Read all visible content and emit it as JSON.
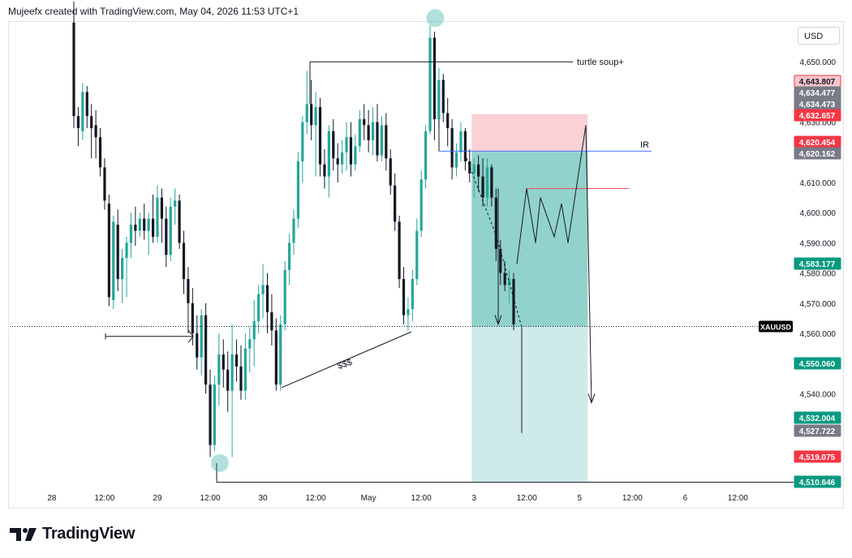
{
  "header": {
    "attribution": "Mujeefx created with TradingView.com, May 04, 2026 11:53 UTC+1"
  },
  "currency": "USD",
  "brand": {
    "name": "TradingView"
  },
  "colors": {
    "up": "#26a69a",
    "down": "#131722",
    "stop_zone": "#f7c6cc",
    "target_zone": "#26a69a",
    "label_green": "#089981",
    "label_red": "#f23645",
    "label_gray": "#787b86"
  },
  "chart_data": {
    "type": "candlestick",
    "symbol_label": "XAUUSD",
    "ylim": [
      4501,
      4667
    ],
    "y_ticks": [
      4540,
      4550,
      4560,
      4570,
      4580,
      4590,
      4600,
      4610,
      4620,
      4630,
      4640,
      4650
    ],
    "y_tick_labels": [
      "4,540.000",
      "4,550.000",
      "4,560.000",
      "4,570.000",
      "4,580.000",
      "4,590.000",
      "4,600.000",
      "4,610.000",
      "4,620.000",
      "4,630.000",
      "4,640.000",
      "4,650.000"
    ],
    "x_ticks": [
      {
        "label": "28",
        "i": -5
      },
      {
        "label": "12:00",
        "i": 7
      },
      {
        "label": "29",
        "i": 19
      },
      {
        "label": "12:00",
        "i": 31
      },
      {
        "label": "30",
        "i": 43
      },
      {
        "label": "12:00",
        "i": 55
      },
      {
        "label": "May",
        "i": 67
      },
      {
        "label": "12:00",
        "i": 79
      },
      {
        "label": "3",
        "i": 91
      },
      {
        "label": "12:00",
        "i": 103
      },
      {
        "label": "5",
        "i": 115
      },
      {
        "label": "12:00",
        "i": 127
      },
      {
        "label": "6",
        "i": 139
      },
      {
        "label": "12:00",
        "i": 151
      }
    ],
    "candles": [
      [
        4663,
        4670,
        4628,
        4632
      ],
      [
        4632,
        4635,
        4622,
        4628
      ],
      [
        4627,
        4643,
        4624,
        4640
      ],
      [
        4640,
        4642,
        4628,
        4632
      ],
      [
        4632,
        4636,
        4618,
        4628
      ],
      [
        4629,
        4634,
        4618,
        4625
      ],
      [
        4625,
        4628,
        4612,
        4615
      ],
      [
        4615,
        4618,
        4601,
        4604
      ],
      [
        4603,
        4606,
        4569,
        4572
      ],
      [
        4571,
        4599,
        4568,
        4597
      ],
      [
        4596,
        4601,
        4574,
        4578
      ],
      [
        4578,
        4588,
        4570,
        4585
      ],
      [
        4585,
        4592,
        4572,
        4590
      ],
      [
        4590,
        4600,
        4585,
        4596
      ],
      [
        4596,
        4602,
        4589,
        4594
      ],
      [
        4594,
        4600,
        4592,
        4598
      ],
      [
        4598,
        4603,
        4591,
        4594
      ],
      [
        4594,
        4600,
        4586,
        4598
      ],
      [
        4598,
        4606,
        4590,
        4592
      ],
      [
        4592,
        4609,
        4590,
        4605
      ],
      [
        4605,
        4608,
        4590,
        4598
      ],
      [
        4598,
        4602,
        4582,
        4586
      ],
      [
        4586,
        4605,
        4584,
        4602
      ],
      [
        4602,
        4608,
        4596,
        4604
      ],
      [
        4604,
        4606,
        4588,
        4590
      ],
      [
        4590,
        4594,
        4573,
        4578
      ],
      [
        4578,
        4582,
        4560,
        4570
      ],
      [
        4570,
        4575,
        4556,
        4560
      ],
      [
        4560,
        4566,
        4548,
        4552
      ],
      [
        4552,
        4568,
        4546,
        4566
      ],
      [
        4566,
        4570,
        4540,
        4543
      ],
      [
        4543,
        4548,
        4519,
        4523
      ],
      [
        4523,
        4546,
        4521,
        4543
      ],
      [
        4543,
        4560,
        4536,
        4553
      ],
      [
        4553,
        4558,
        4542,
        4548
      ],
      [
        4548,
        4554,
        4534,
        4541
      ],
      [
        4541,
        4563,
        4519,
        4553
      ],
      [
        4553,
        4558,
        4544,
        4549
      ],
      [
        4549,
        4556,
        4538,
        4541
      ],
      [
        4541,
        4560,
        4538,
        4555
      ],
      [
        4555,
        4562,
        4547,
        4558
      ],
      [
        4558,
        4571,
        4549,
        4564
      ],
      [
        4564,
        4576,
        4560,
        4573
      ],
      [
        4573,
        4583,
        4565,
        4576
      ],
      [
        4576,
        4580,
        4560,
        4567
      ],
      [
        4567,
        4573,
        4556,
        4561
      ],
      [
        4561,
        4565,
        4541,
        4543
      ],
      [
        4543,
        4566,
        4541,
        4563
      ],
      [
        4563,
        4584,
        4561,
        4581
      ],
      [
        4581,
        4593,
        4576,
        4590
      ],
      [
        4590,
        4601,
        4586,
        4598
      ],
      [
        4598,
        4620,
        4595,
        4617
      ],
      [
        4617,
        4632,
        4610,
        4630
      ],
      [
        4630,
        4647,
        4626,
        4636
      ],
      [
        4636,
        4644,
        4624,
        4629
      ],
      [
        4629,
        4640,
        4612,
        4635
      ],
      [
        4635,
        4638,
        4612,
        4616
      ],
      [
        4616,
        4621,
        4608,
        4612
      ],
      [
        4612,
        4629,
        4605,
        4627
      ],
      [
        4627,
        4631,
        4614,
        4618
      ],
      [
        4618,
        4623,
        4610,
        4616
      ],
      [
        4616,
        4624,
        4613,
        4620
      ],
      [
        4620,
        4630,
        4614,
        4625
      ],
      [
        4625,
        4630,
        4612,
        4616
      ],
      [
        4616,
        4626,
        4614,
        4622
      ],
      [
        4622,
        4634,
        4620,
        4631
      ],
      [
        4631,
        4636,
        4624,
        4629
      ],
      [
        4629,
        4634,
        4620,
        4624
      ],
      [
        4624,
        4635,
        4619,
        4630
      ],
      [
        4630,
        4636,
        4617,
        4619
      ],
      [
        4619,
        4632,
        4617,
        4629
      ],
      [
        4629,
        4633,
        4614,
        4618
      ],
      [
        4618,
        4621,
        4606,
        4609
      ],
      [
        4609,
        4613,
        4594,
        4597
      ],
      [
        4597,
        4599,
        4575,
        4578
      ],
      [
        4578,
        4582,
        4563,
        4566
      ],
      [
        4566,
        4572,
        4561,
        4568
      ],
      [
        4568,
        4581,
        4564,
        4578
      ],
      [
        4578,
        4598,
        4576,
        4594
      ],
      [
        4594,
        4614,
        4592,
        4611
      ],
      [
        4611,
        4629,
        4608,
        4627
      ],
      [
        4627,
        4662,
        4626,
        4658
      ],
      [
        4658,
        4660,
        4624,
        4631
      ],
      [
        4631,
        4648,
        4628,
        4644
      ],
      [
        4644,
        4646,
        4630,
        4633
      ],
      [
        4633,
        4638,
        4622,
        4628
      ],
      [
        4628,
        4631,
        4611,
        4615
      ],
      [
        4615,
        4623,
        4612,
        4620
      ],
      [
        4620,
        4630,
        4617,
        4627
      ],
      [
        4627,
        4628,
        4614,
        4617
      ],
      [
        4617,
        4621,
        4610,
        4613
      ],
      [
        4613,
        4618,
        4605,
        4616
      ],
      [
        4616,
        4619,
        4607,
        4612
      ],
      [
        4612,
        4618,
        4602,
        4605
      ],
      [
        4605,
        4618,
        4602,
        4615
      ],
      [
        4615,
        4616,
        4602,
        4605
      ],
      [
        4605,
        4608,
        4584,
        4588
      ],
      [
        4588,
        4591,
        4576,
        4580
      ],
      [
        4580,
        4584,
        4574,
        4576
      ],
      [
        4576,
        4581,
        4570,
        4578
      ],
      [
        4578,
        4580,
        4561,
        4563
      ]
    ],
    "current_price": 4562.3,
    "position": {
      "entry": 4620.162,
      "stop": 4632.657,
      "target": 4510.646,
      "start_i": 91,
      "end_i": 115
    },
    "price_labels": [
      {
        "value": "4,643.807",
        "price": 4643.807,
        "color": "#f23645",
        "fill": "#f7c6cc",
        "text": "#131722"
      },
      {
        "value": "4,634.477",
        "price": 4634.477,
        "color": "#787b86",
        "text": "#ffffff"
      },
      {
        "value": "4,634.473",
        "price": 4634.473,
        "color": "#787b86",
        "text": "#ffffff"
      },
      {
        "value": "4,632.657",
        "price": 4632.657,
        "color": "#f23645",
        "text": "#ffffff"
      },
      {
        "value": "4,620.454",
        "price": 4620.454,
        "color": "#f23645",
        "text": "#ffffff"
      },
      {
        "value": "4,620.162",
        "price": 4620.162,
        "color": "#787b86",
        "text": "#ffffff"
      },
      {
        "value": "4,583.177",
        "price": 4583.177,
        "color": "#089981",
        "text": "#ffffff"
      },
      {
        "value": "4,550.060",
        "price": 4550.06,
        "color": "#089981",
        "text": "#ffffff"
      },
      {
        "value": "4,532.004",
        "price": 4532.004,
        "color": "#089981",
        "text": "#ffffff"
      },
      {
        "value": "4,527.722",
        "price": 4527.722,
        "color": "#787b86",
        "text": "#ffffff"
      },
      {
        "value": "4,519.075",
        "price": 4519.075,
        "color": "#f23645",
        "text": "#ffffff"
      },
      {
        "value": "4,510.646",
        "price": 4510.646,
        "color": "#089981",
        "text": "#ffffff"
      }
    ],
    "annotations": [
      {
        "type": "label",
        "text": "turtle soup+",
        "at_i": 99,
        "price": 4650
      },
      {
        "type": "label",
        "text": "IR",
        "at_i": 113,
        "price": 4620.5
      },
      {
        "type": "label",
        "text": "$$$",
        "at_i": 60,
        "price": 4550
      },
      {
        "type": "circle",
        "at_i": 82,
        "price": 4664.5
      },
      {
        "type": "circle",
        "at_i": 33,
        "price": 4517
      }
    ]
  }
}
